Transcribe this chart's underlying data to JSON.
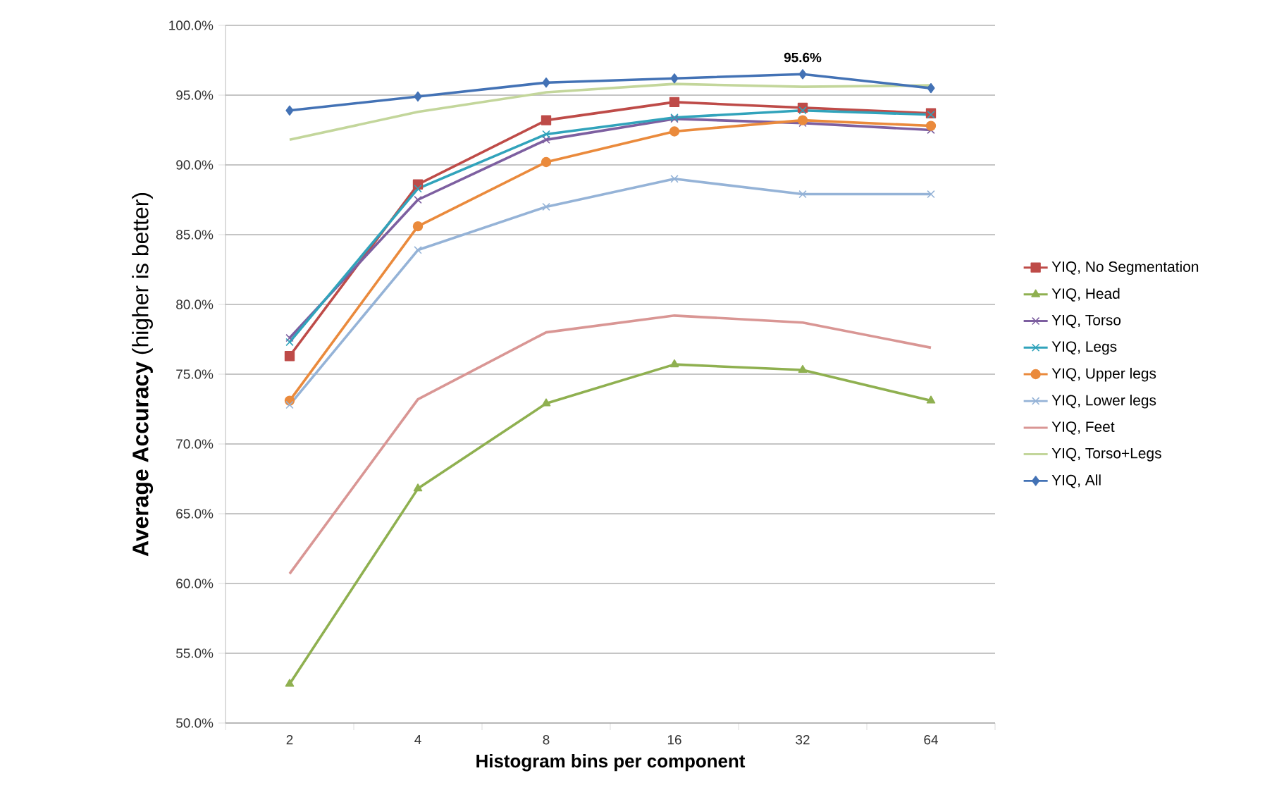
{
  "chart_data": {
    "type": "line",
    "xlabel": "Histogram bins per component",
    "ylabel": "**Average Accuracy** (higher is better)",
    "categories": [
      "2",
      "4",
      "8",
      "16",
      "32",
      "64"
    ],
    "ylim": [
      50,
      100
    ],
    "yticks": [
      {
        "value": 50,
        "label": "50.0%"
      },
      {
        "value": 55,
        "label": "55.0%"
      },
      {
        "value": 60,
        "label": "60.0%"
      },
      {
        "value": 65,
        "label": "65.0%"
      },
      {
        "value": 70,
        "label": "70.0%"
      },
      {
        "value": 75,
        "label": "75.0%"
      },
      {
        "value": 80,
        "label": "80.0%"
      },
      {
        "value": 85,
        "label": "85.0%"
      },
      {
        "value": 90,
        "label": "90.0%"
      },
      {
        "value": 95,
        "label": "95.0%"
      },
      {
        "value": 100,
        "label": "100.0%"
      }
    ],
    "grid": "y",
    "legend": "right",
    "annotations": [
      {
        "text": "95.6%",
        "x": "32",
        "y": 96.5
      }
    ],
    "series": [
      {
        "name": "YIQ, No Segmentation",
        "color": "#be4b48",
        "marker": "square",
        "values": [
          76.3,
          88.6,
          93.2,
          94.5,
          94.1,
          93.7
        ]
      },
      {
        "name": "YIQ, Head",
        "color": "#8fb050",
        "marker": "triangle",
        "values": [
          52.8,
          66.8,
          72.9,
          75.7,
          75.3,
          73.1
        ]
      },
      {
        "name": "YIQ, Torso",
        "color": "#7d5fa0",
        "marker": "cross",
        "values": [
          77.6,
          87.5,
          91.8,
          93.3,
          93.0,
          92.5
        ]
      },
      {
        "name": "YIQ, Legs",
        "color": "#31a3bb",
        "marker": "cross",
        "values": [
          77.3,
          88.3,
          92.2,
          93.4,
          93.9,
          93.6
        ]
      },
      {
        "name": "YIQ, Upper legs",
        "color": "#ea8a3c",
        "marker": "circle",
        "values": [
          73.1,
          85.6,
          90.2,
          92.4,
          93.2,
          92.8
        ]
      },
      {
        "name": "YIQ, Lower legs",
        "color": "#95b3d7",
        "marker": "cross",
        "values": [
          72.8,
          83.9,
          87.0,
          89.0,
          87.9,
          87.9
        ]
      },
      {
        "name": "YIQ, Feet",
        "color": "#d99694",
        "marker": "none",
        "values": [
          60.7,
          73.2,
          78.0,
          79.2,
          78.7,
          76.9
        ]
      },
      {
        "name": "YIQ, Torso+Legs",
        "color": "#c3d69b",
        "marker": "none",
        "values": [
          91.8,
          93.8,
          95.2,
          95.8,
          95.6,
          95.7
        ]
      },
      {
        "name": "YIQ, All",
        "color": "#4372b5",
        "marker": "diamond",
        "values": [
          93.9,
          94.9,
          95.9,
          96.2,
          96.5,
          95.5
        ]
      }
    ]
  }
}
